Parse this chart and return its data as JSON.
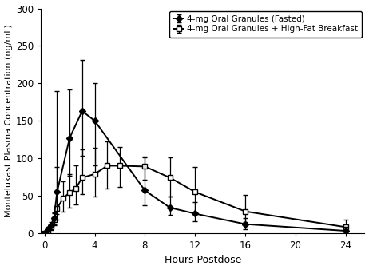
{
  "fasted_x": [
    0,
    0.25,
    0.5,
    0.75,
    1,
    2,
    3,
    4,
    8,
    10,
    12,
    16,
    24
  ],
  "fasted_y": [
    0,
    5,
    10,
    20,
    55,
    127,
    163,
    150,
    57,
    34,
    26,
    12,
    3
  ],
  "fasted_yerr_lo": [
    0,
    3,
    5,
    8,
    30,
    50,
    60,
    60,
    20,
    10,
    10,
    7,
    2
  ],
  "fasted_yerr_hi": [
    0,
    3,
    5,
    8,
    135,
    65,
    68,
    50,
    45,
    15,
    15,
    8,
    5
  ],
  "hifat_x": [
    0,
    0.25,
    0.5,
    0.75,
    1,
    1.5,
    2,
    2.5,
    3,
    4,
    5,
    6,
    8,
    10,
    12,
    16,
    24
  ],
  "hifat_y": [
    0,
    2,
    8,
    18,
    33,
    47,
    54,
    60,
    74,
    79,
    90,
    90,
    89,
    74,
    55,
    29,
    8
  ],
  "hifat_yerr_lo": [
    0,
    2,
    4,
    8,
    15,
    18,
    20,
    22,
    22,
    30,
    30,
    28,
    18,
    25,
    30,
    14,
    5
  ],
  "hifat_yerr_hi": [
    0,
    2,
    4,
    8,
    55,
    22,
    25,
    30,
    38,
    35,
    32,
    25,
    12,
    27,
    33,
    22,
    10
  ],
  "ylabel": "Montelukast Plasma Concentration (ng/mL)",
  "xlabel": "Hours Postdose",
  "ylim": [
    0,
    300
  ],
  "yticks": [
    0,
    50,
    100,
    150,
    200,
    250,
    300
  ],
  "xticks": [
    0,
    4,
    8,
    12,
    16,
    20,
    24
  ],
  "xlim": [
    -0.3,
    25.5
  ],
  "legend_fasted": "4-mg Oral Granules (Fasted)",
  "legend_hifat": "4-mg Oral Granules + High-Fat Breakfast",
  "line_color": "#000000",
  "background_color": "#ffffff",
  "figsize": [
    4.62,
    3.38
  ],
  "dpi": 100
}
